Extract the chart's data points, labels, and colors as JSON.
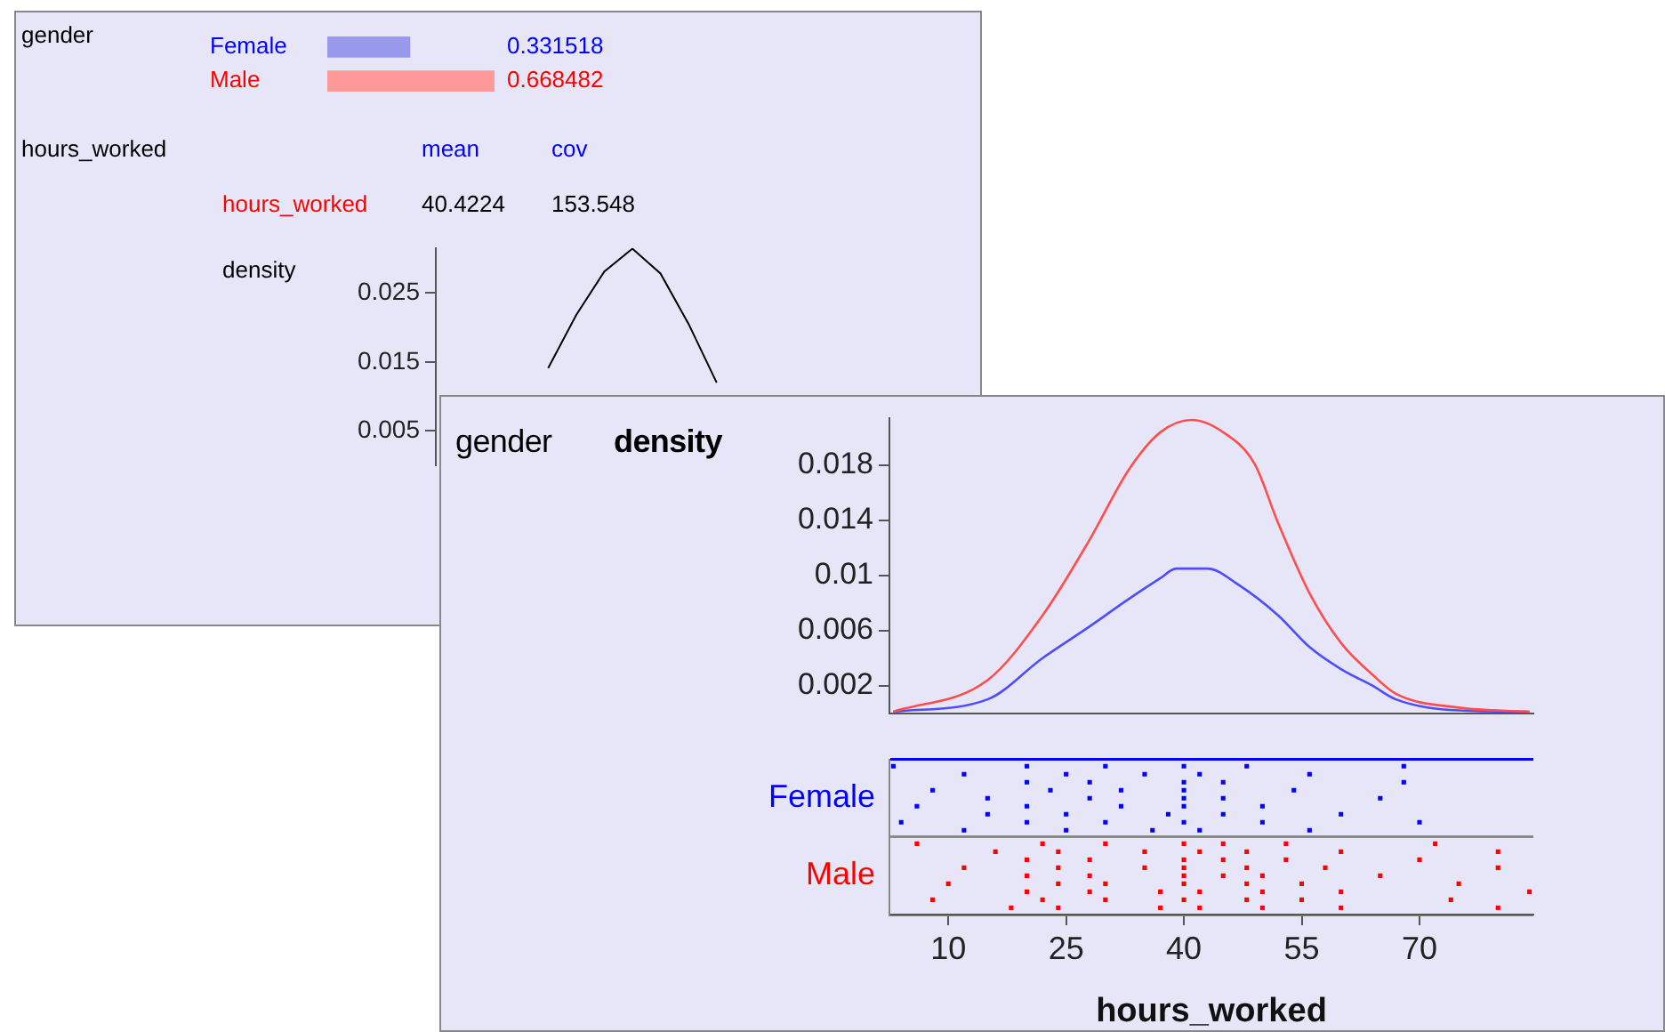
{
  "chart_data": [
    {
      "type": "bar",
      "orientation": "horizontal",
      "ylabel": "gender",
      "categories": [
        "Female",
        "Male"
      ],
      "values": [
        0.331518,
        0.668482
      ],
      "colors": [
        "#9999ee",
        "#ff9999"
      ],
      "data_labels": true,
      "annotations": [
        "hours_worked",
        "mean",
        "cov",
        "hours_worked",
        "40.4224",
        "153.548"
      ]
    },
    {
      "type": "line",
      "ylabel": "density",
      "categories": [
        null,
        null,
        null,
        null,
        null,
        null,
        null
      ],
      "ylim": [
        0,
        0.0315
      ],
      "yticks": [
        0.005,
        0.015,
        0.025
      ],
      "tick_labels": "y",
      "series": [
        {
          "color": "#000000",
          "values": [
            0.0141,
            0.0218,
            0.0281,
            0.0314,
            0.0278,
            0.0205,
            0.012
          ]
        }
      ]
    },
    {
      "type": "line",
      "ylabel": "density",
      "annotations": [
        "gender"
      ],
      "xlim": [
        2.5,
        84.5
      ],
      "ylim": [
        0,
        0.0214
      ],
      "yticks": [
        0.002,
        0.006,
        0.01,
        0.014,
        0.018
      ],
      "tick_labels": "y",
      "series": [
        {
          "color": "#ff4d4d",
          "x": [
            3,
            15,
            22,
            28,
            33,
            37,
            41,
            45,
            49,
            52,
            56,
            60,
            64,
            67,
            75,
            84
          ],
          "values": [
            0.0001,
            0.0024,
            0.0071,
            0.0126,
            0.0177,
            0.0204,
            0.0213,
            0.0204,
            0.0181,
            0.0138,
            0.0087,
            0.0051,
            0.0028,
            0.0014,
            0.0004,
            0.0001
          ]
        },
        {
          "color": "#4d4dff",
          "x": [
            3,
            15,
            22,
            28,
            33,
            37,
            39,
            43,
            47,
            52,
            56,
            60,
            64,
            67,
            75,
            84
          ],
          "values": [
            0.0001,
            0.001,
            0.004,
            0.0063,
            0.0083,
            0.0098,
            0.0105,
            0.0105,
            0.0093,
            0.0071,
            0.0048,
            0.0032,
            0.002,
            0.001,
            0.0002,
            0.0001
          ]
        }
      ]
    },
    {
      "type": "scatter",
      "orientation": "horizontal",
      "xlabel": "hours_worked",
      "categories": [
        "Female",
        "Male"
      ],
      "xlim": [
        2.5,
        84.5
      ],
      "xticks": [
        10,
        25,
        40,
        55,
        70
      ],
      "marker": "square",
      "grid": "y",
      "series": [
        {
          "color": "#0000ff",
          "x": [
            "Female",
            "Female",
            "Female",
            "Female",
            "Female",
            "Female",
            "Female",
            "Female",
            "Female",
            "Female",
            "Female",
            "Female",
            "Female",
            "Female",
            "Female",
            "Female",
            "Female",
            "Female",
            "Female",
            "Female",
            "Female",
            "Female",
            "Female",
            "Female",
            "Female",
            "Female",
            "Female",
            "Female",
            "Female",
            "Female",
            "Female",
            "Female",
            "Female",
            "Female",
            "Female",
            "Female",
            "Female",
            "Female",
            "Female",
            "Female",
            "Female",
            "Female",
            "Female",
            "Female",
            "Female",
            "Female",
            "Female"
          ],
          "values": [
            3,
            4,
            6,
            8,
            12,
            12,
            15,
            15,
            20,
            20,
            20,
            20,
            23,
            25,
            25,
            25,
            28,
            28,
            30,
            30,
            32,
            32,
            35,
            36,
            38,
            40,
            40,
            40,
            40,
            40,
            40,
            42,
            42,
            45,
            45,
            45,
            48,
            50,
            50,
            54,
            56,
            56,
            60,
            65,
            68,
            68,
            70
          ]
        },
        {
          "color": "#ff0000",
          "x": [
            "Male",
            "Male",
            "Male",
            "Male",
            "Male",
            "Male",
            "Male",
            "Male",
            "Male",
            "Male",
            "Male",
            "Male",
            "Male",
            "Male",
            "Male",
            "Male",
            "Male",
            "Male",
            "Male",
            "Male",
            "Male",
            "Male",
            "Male",
            "Male",
            "Male",
            "Male",
            "Male",
            "Male",
            "Male",
            "Male",
            "Male",
            "Male",
            "Male",
            "Male",
            "Male",
            "Male",
            "Male",
            "Male",
            "Male",
            "Male",
            "Male",
            "Male",
            "Male",
            "Male",
            "Male",
            "Male",
            "Male",
            "Male",
            "Male",
            "Male",
            "Male",
            "Male",
            "Male",
            "Male",
            "Male",
            "Male",
            "Male",
            "Male",
            "Male",
            "Male",
            "Male"
          ],
          "values": [
            6,
            8,
            10,
            12,
            16,
            18,
            20,
            20,
            20,
            22,
            22,
            24,
            24,
            24,
            24,
            28,
            28,
            28,
            30,
            30,
            30,
            35,
            35,
            37,
            37,
            40,
            40,
            40,
            40,
            40,
            40,
            42,
            42,
            42,
            45,
            45,
            45,
            48,
            48,
            48,
            48,
            50,
            50,
            50,
            53,
            53,
            55,
            55,
            58,
            60,
            60,
            60,
            65,
            70,
            72,
            74,
            75,
            80,
            80,
            80,
            84
          ]
        }
      ]
    }
  ]
}
